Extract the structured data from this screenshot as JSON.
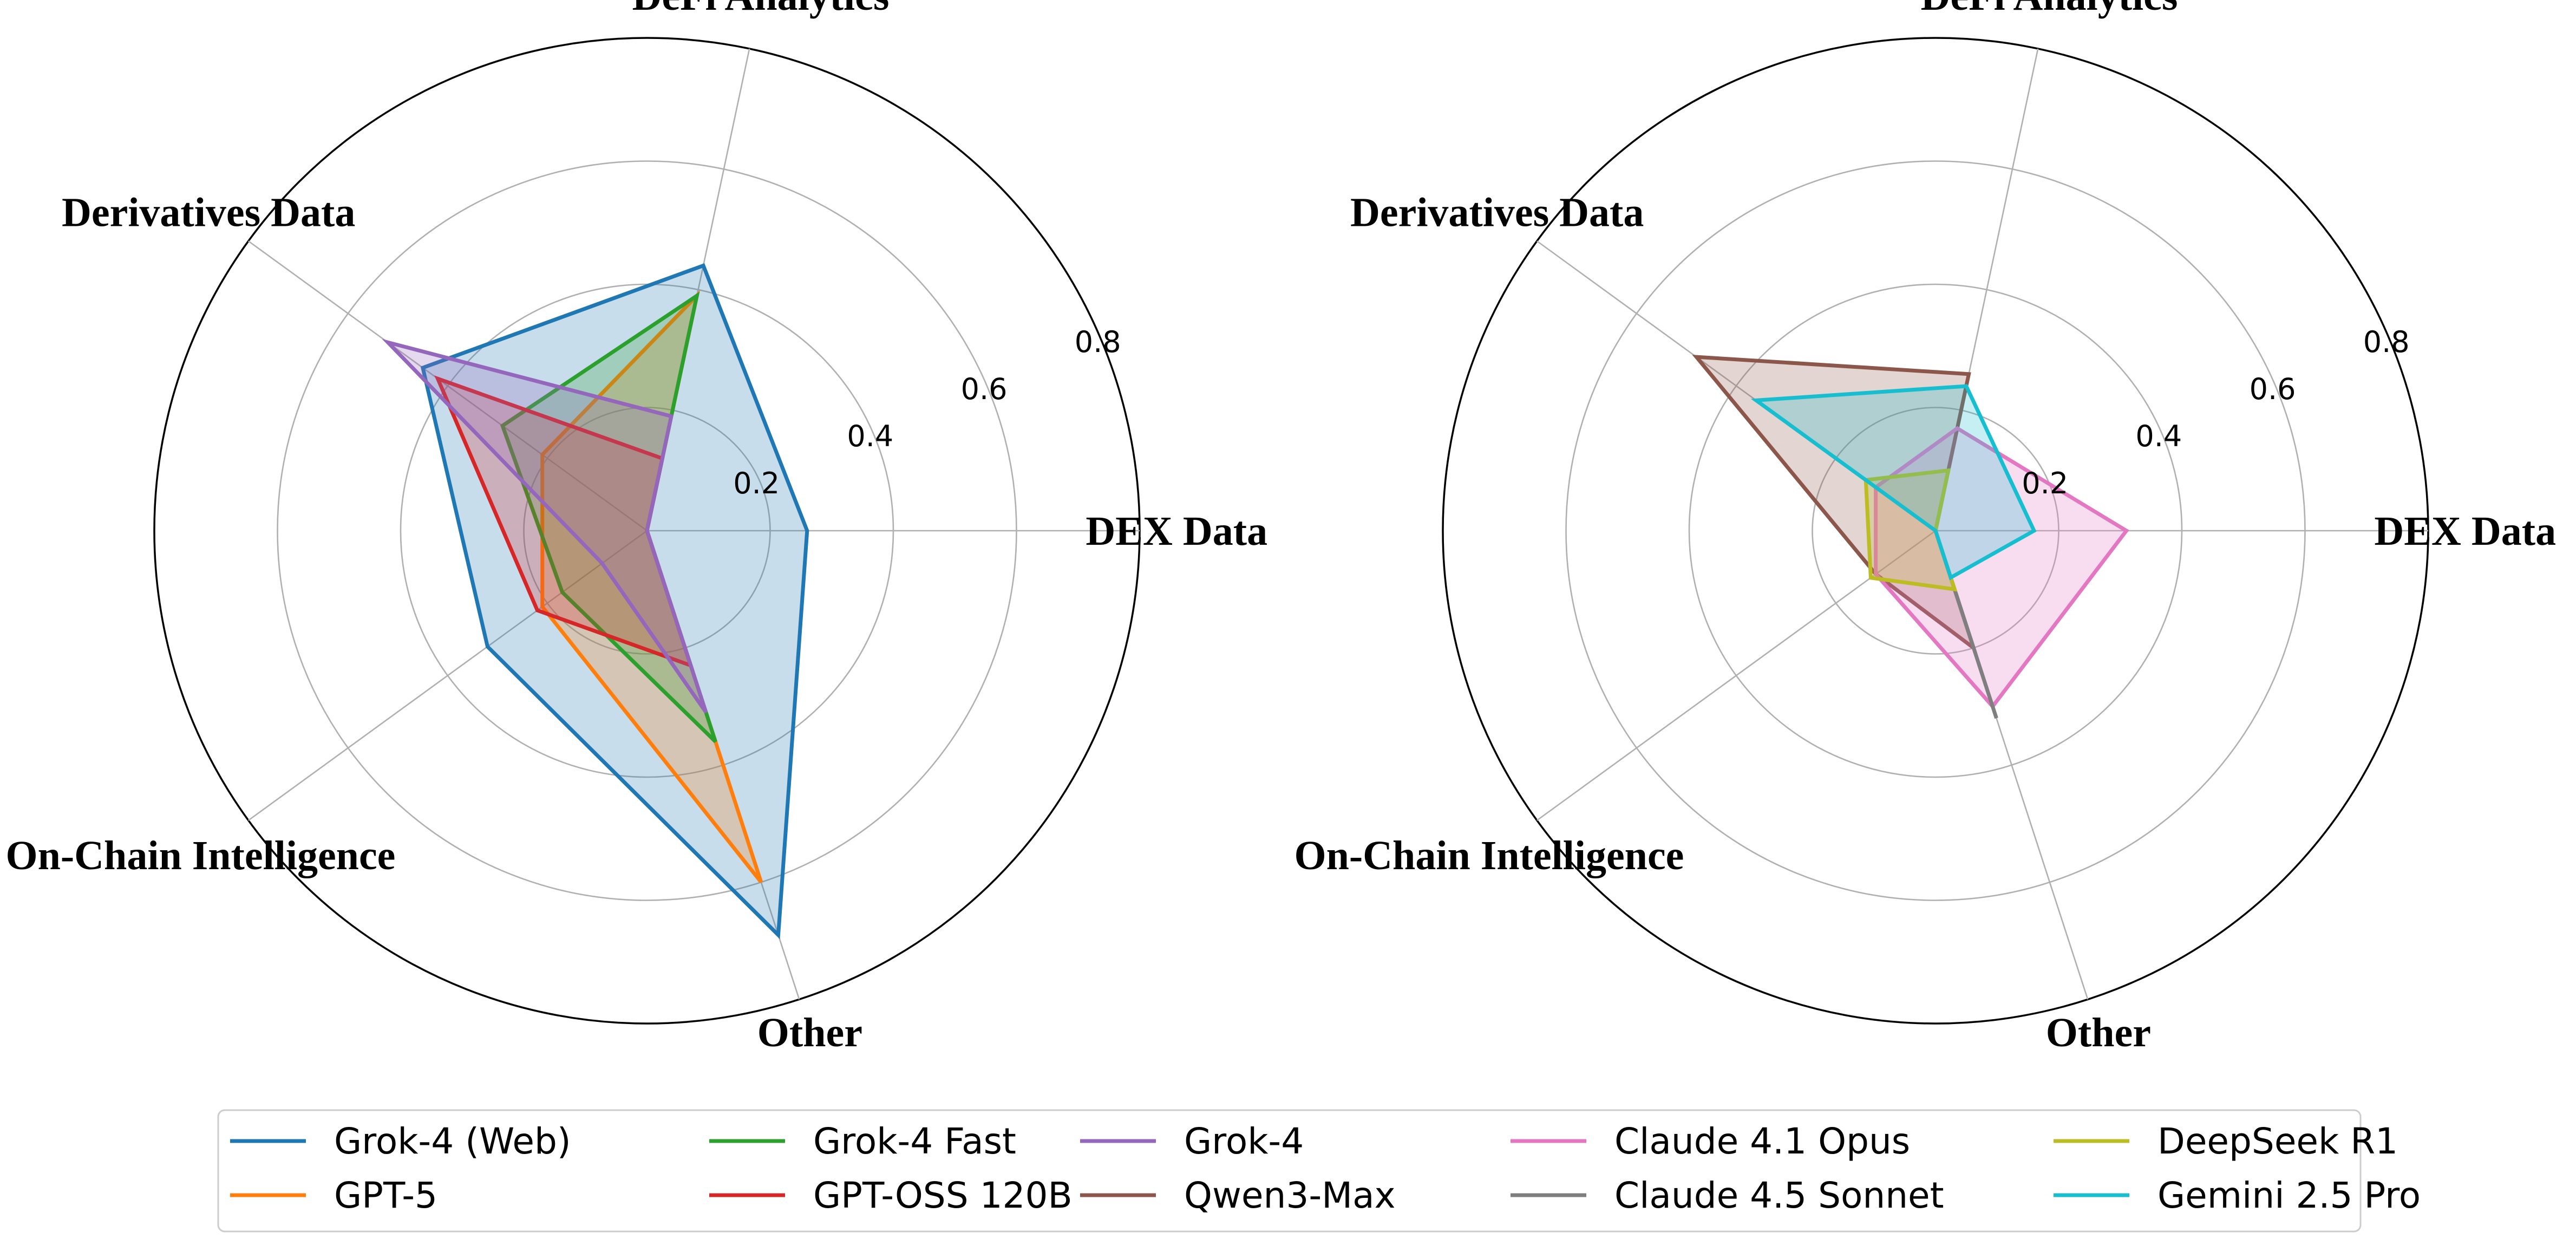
{
  "chart_data": [
    {
      "type": "radar",
      "axes": [
        "DEX Data",
        "DeFi Analytics",
        "Derivatives Data",
        "On-Chain Intelligence",
        "Other"
      ],
      "rlim": [
        0,
        0.8
      ],
      "rticks": [
        0.2,
        0.4,
        0.6,
        0.8
      ],
      "rtick_labels": [
        "0.2",
        "0.4",
        "0.6",
        "0.8"
      ],
      "series": [
        {
          "name": "Grok-4 (Web)",
          "color": "#1f77b4",
          "values": [
            0.26,
            0.44,
            0.45,
            0.32,
            0.69
          ]
        },
        {
          "name": "GPT-5",
          "color": "#ff7f0e",
          "values": [
            0.0,
            0.39,
            0.21,
            0.21,
            0.6
          ]
        },
        {
          "name": "Grok-4 Fast",
          "color": "#2ca02c",
          "values": [
            0.0,
            0.39,
            0.29,
            0.17,
            0.36
          ]
        },
        {
          "name": "GPT-OSS 120B",
          "color": "#d62728",
          "values": [
            0.0,
            0.12,
            0.42,
            0.22,
            0.23
          ]
        },
        {
          "name": "Grok-4",
          "color": "#9467bd",
          "values": [
            0.0,
            0.19,
            0.52,
            0.09,
            0.31
          ]
        }
      ]
    },
    {
      "type": "radar",
      "axes": [
        "DEX Data",
        "DeFi Analytics",
        "Derivatives Data",
        "On-Chain Intelligence",
        "Other"
      ],
      "rlim": [
        0,
        0.8
      ],
      "rticks": [
        0.2,
        0.4,
        0.6,
        0.8
      ],
      "rtick_labels": [
        "0.2",
        "0.4",
        "0.6",
        "0.8"
      ],
      "series": [
        {
          "name": "Qwen3-Max",
          "color": "#8c564b",
          "values": [
            0.0,
            0.26,
            0.48,
            0.12,
            0.2
          ]
        },
        {
          "name": "Claude 4.1 Opus",
          "color": "#e377c2",
          "values": [
            0.31,
            0.17,
            0.12,
            0.12,
            0.3
          ]
        },
        {
          "name": "Claude 4.5 Sonnet",
          "color": "#7f7f7f",
          "values": [
            0.0,
            0.0,
            0.0,
            0.0,
            0.32
          ]
        },
        {
          "name": "DeepSeek R1",
          "color": "#bcbd22",
          "values": [
            0.0,
            0.1,
            0.14,
            0.13,
            0.1
          ]
        },
        {
          "name": "Gemini 2.5 Pro",
          "color": "#17becf",
          "values": [
            0.16,
            0.24,
            0.36,
            0.0,
            0.08
          ]
        }
      ]
    }
  ],
  "legend": [
    {
      "label": "Grok-4 (Web)",
      "color": "#1f77b4"
    },
    {
      "label": "GPT-5",
      "color": "#ff7f0e"
    },
    {
      "label": "Grok-4 Fast",
      "color": "#2ca02c"
    },
    {
      "label": "GPT-OSS 120B",
      "color": "#d62728"
    },
    {
      "label": "Grok-4",
      "color": "#9467bd"
    },
    {
      "label": "Qwen3-Max",
      "color": "#8c564b"
    },
    {
      "label": "Claude 4.1 Opus",
      "color": "#e377c2"
    },
    {
      "label": "Claude 4.5 Sonnet",
      "color": "#7f7f7f"
    },
    {
      "label": "DeepSeek R1",
      "color": "#bcbd22"
    },
    {
      "label": "Gemini 2.5 Pro",
      "color": "#17becf"
    }
  ]
}
